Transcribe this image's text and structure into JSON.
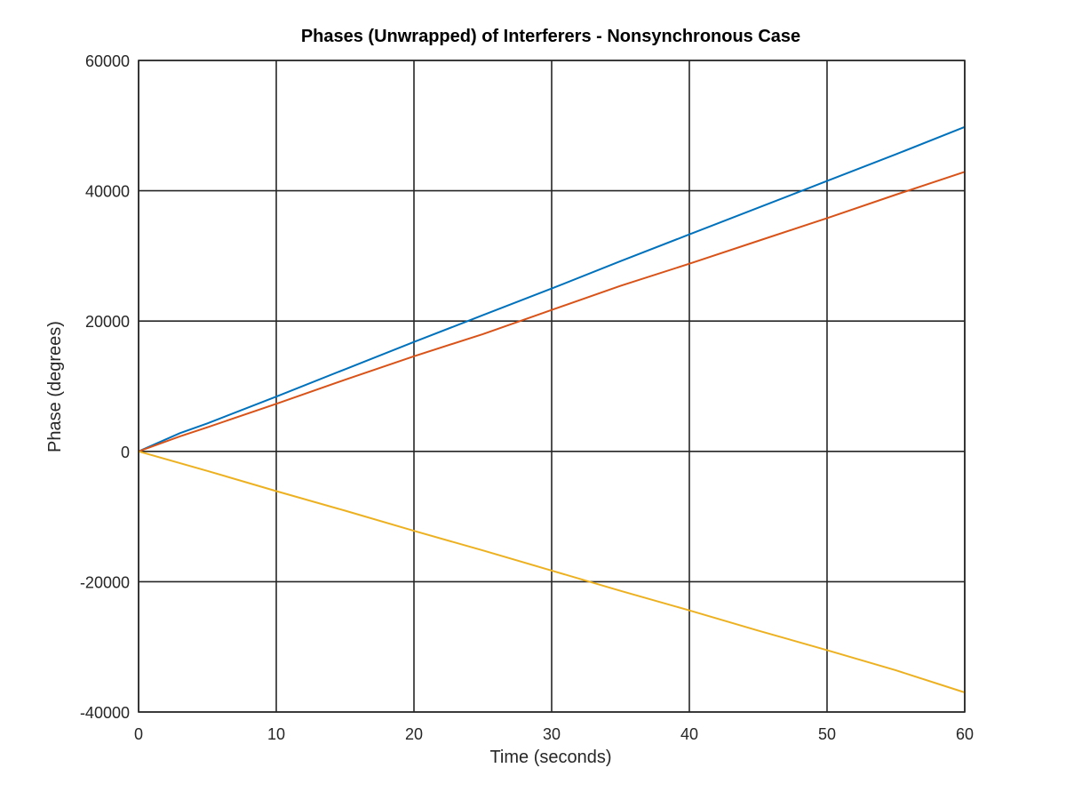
{
  "chart_data": {
    "type": "line",
    "title": "Phases (Unwrapped) of Interferers - Nonsynchronous Case",
    "xlabel": "Time (seconds)",
    "ylabel": "Phase (degrees)",
    "xlim": [
      0,
      60
    ],
    "ylim": [
      -40000,
      60000
    ],
    "xticks": [
      0,
      10,
      20,
      30,
      40,
      50,
      60
    ],
    "xtick_labels": [
      "0",
      "10",
      "20",
      "30",
      "40",
      "50",
      "60"
    ],
    "yticks": [
      -40000,
      -20000,
      0,
      20000,
      40000,
      60000
    ],
    "ytick_labels": [
      "-40000",
      "-20000",
      "0",
      "20000",
      "40000",
      "60000"
    ],
    "grid": true,
    "series": [
      {
        "color": "#0072BD",
        "x": [
          0,
          3,
          5,
          10,
          15,
          20,
          25,
          30,
          35,
          40,
          45,
          50,
          55,
          60
        ],
        "y": [
          0,
          2800,
          4300,
          8400,
          12600,
          16800,
          20900,
          25000,
          29200,
          33300,
          37400,
          41500,
          45600,
          49800
        ]
      },
      {
        "color": "#D95319",
        "x": [
          0,
          3,
          5,
          10,
          15,
          20,
          25,
          30,
          35,
          40,
          45,
          50,
          55,
          60
        ],
        "y": [
          0,
          2300,
          3700,
          7300,
          11000,
          14600,
          18000,
          21700,
          25400,
          28800,
          32300,
          35800,
          39400,
          42900
        ]
      },
      {
        "color": "#EDB120",
        "x": [
          0,
          5,
          10,
          15,
          20,
          25,
          30,
          35,
          40,
          45,
          50,
          55,
          60
        ],
        "y": [
          0,
          -3000,
          -6100,
          -9100,
          -12200,
          -15200,
          -18300,
          -21400,
          -24400,
          -27500,
          -30500,
          -33600,
          -37000
        ]
      }
    ]
  }
}
